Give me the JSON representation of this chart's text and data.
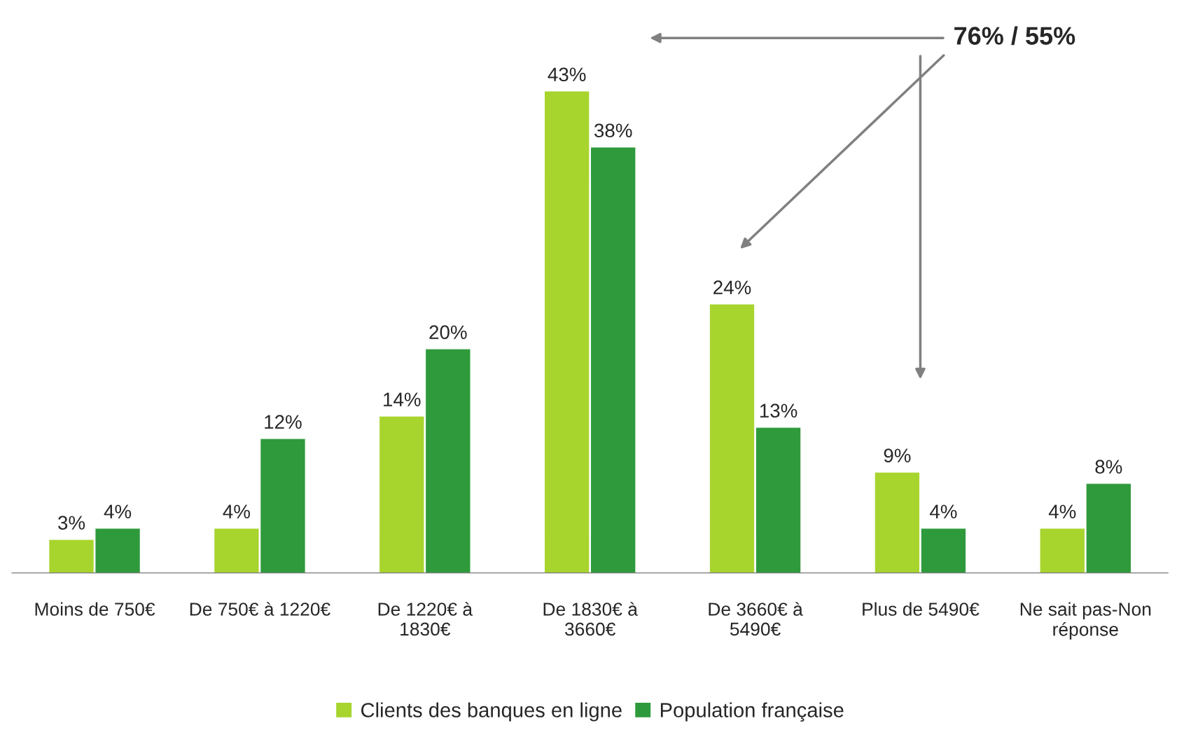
{
  "chart_data": {
    "type": "bar",
    "categories": [
      "Moins de 750€",
      "De 750€ à 1220€",
      "De 1220€ à\n1830€",
      "De 1830€ à\n3660€",
      "De 3660€ à\n5490€",
      "Plus de 5490€",
      "Ne sait pas-Non\nréponse"
    ],
    "series": [
      {
        "name": "Clients des banques en ligne",
        "color": "#a8d42e",
        "values": [
          3,
          4,
          14,
          43,
          24,
          9,
          4
        ],
        "value_labels": [
          "3%",
          "4%",
          "14%",
          "43%",
          "24%",
          "9%",
          "4%"
        ]
      },
      {
        "name": "Population française",
        "color": "#2f9a3c",
        "values": [
          4,
          12,
          20,
          38,
          13,
          4,
          8
        ],
        "value_labels": [
          "4%",
          "12%",
          "20%",
          "38%",
          "13%",
          "4%",
          "8%"
        ]
      }
    ],
    "annotations": [
      "76% / 55%"
    ],
    "legend": "bottom",
    "grid": false
  }
}
